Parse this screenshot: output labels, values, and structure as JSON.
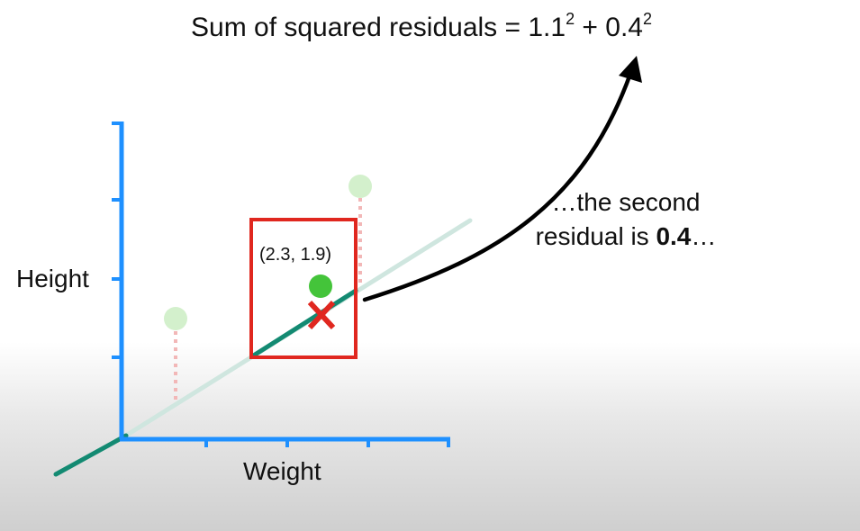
{
  "formula": {
    "prefix": "Sum of squared residuals = 1.1",
    "exp1": "2",
    "mid": " + 0.4",
    "exp2": "2"
  },
  "caption": {
    "line1": "…the second",
    "line2_prefix": "residual is ",
    "line2_bold": "0.4",
    "line2_suffix": "…"
  },
  "axes": {
    "ylabel": "Height",
    "xlabel": "Weight"
  },
  "highlight_point": {
    "label": "(2.3, 1.9)",
    "x": 2.3,
    "y": 1.9
  },
  "colors": {
    "axis": "#1e90ff",
    "fit_line": "#138a72",
    "fit_line_faded": "#cfe6df",
    "point_highlight": "#44c43a",
    "point_faded": "#d3f0cc",
    "residual": "#f2b7b7",
    "box": "#e0271f",
    "marker": "#e0271f",
    "arrow": "#000000"
  }
}
